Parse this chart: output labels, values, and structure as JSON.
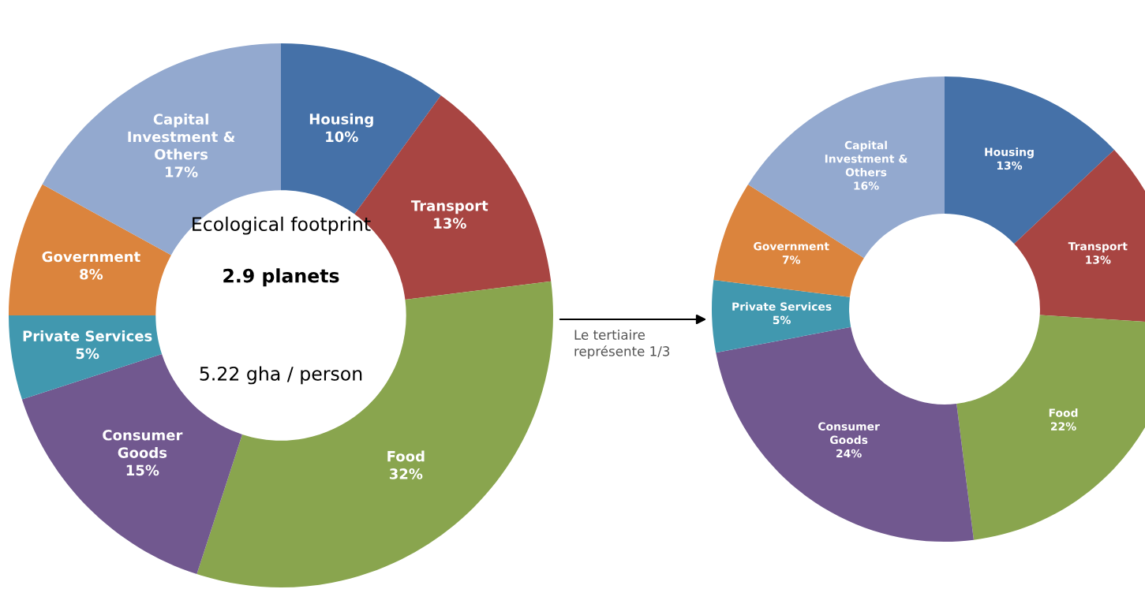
{
  "chart_data": [
    {
      "type": "donut",
      "categories": [
        "Housing",
        "Transport",
        "Food",
        "Consumer\nGoods",
        "Private Services",
        "Government",
        "Capital\nInvestment &\nOthers"
      ],
      "values": [
        10,
        13,
        32,
        15,
        5,
        8,
        17
      ],
      "value_labels": [
        "10%",
        "13%",
        "32%",
        "15%",
        "5%",
        "8%",
        "17%"
      ],
      "colors": [
        "#4571a8",
        "#a84542",
        "#89a54e",
        "#71588f",
        "#4198af",
        "#db843d",
        "#93a9cf"
      ],
      "annotations": [
        "Ecological footprint",
        "2.9 planets",
        "5.22 gha / person"
      ]
    },
    {
      "type": "donut",
      "categories": [
        "Housing",
        "Transport",
        "Food",
        "Consumer\nGoods",
        "Private Services",
        "Government",
        "Capital\nInvestment &\nOthers"
      ],
      "values": [
        13,
        13,
        22,
        24,
        5,
        7,
        16
      ],
      "value_labels": [
        "13%",
        "13%",
        "22%",
        "24%",
        "5%",
        "7%",
        "16%"
      ],
      "colors": [
        "#4571a8",
        "#a84542",
        "#89a54e",
        "#71588f",
        "#4198af",
        "#db843d",
        "#93a9cf"
      ],
      "annotations": [
        "Le tertiaire\nreprésente 1/3"
      ]
    }
  ]
}
